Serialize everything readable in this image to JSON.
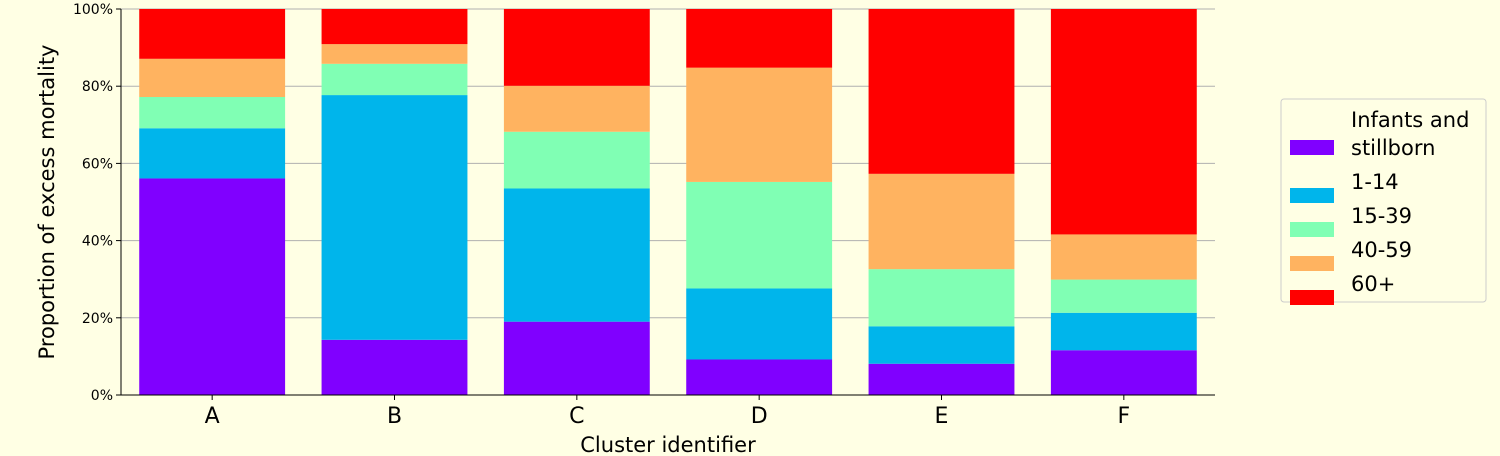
{
  "chart_data": {
    "type": "bar",
    "stacked": true,
    "title": "",
    "xlabel": "Cluster identifier",
    "ylabel": "Proportion of excess mortality",
    "ylim": [
      0,
      100
    ],
    "yticks": [
      "0%",
      "20%",
      "40%",
      "60%",
      "80%",
      "100%"
    ],
    "grid": true,
    "legend_position": "right",
    "categories": [
      "A",
      "B",
      "C",
      "D",
      "E",
      "F"
    ],
    "series": [
      {
        "name": "Infants and stillborn",
        "legend_lines": [
          "Infants and",
          "stillborn"
        ],
        "color": "#8000ff",
        "values": [
          56.1,
          14.3,
          19.0,
          9.2,
          8.1,
          11.6
        ]
      },
      {
        "name": "1-14",
        "legend_lines": [
          "1-14"
        ],
        "color": "#00b5eb",
        "values": [
          13.0,
          63.4,
          34.5,
          18.4,
          9.7,
          9.7
        ]
      },
      {
        "name": "15-39",
        "legend_lines": [
          "15-39"
        ],
        "color": "#80ffb4",
        "values": [
          8.1,
          8.1,
          14.7,
          27.6,
          14.8,
          8.6
        ]
      },
      {
        "name": "40-59",
        "legend_lines": [
          "40-59"
        ],
        "color": "#ffb360",
        "values": [
          9.9,
          5.1,
          11.9,
          29.6,
          24.7,
          11.7
        ]
      },
      {
        "name": "60+",
        "legend_lines": [
          "60+"
        ],
        "color": "#ff0000",
        "values": [
          12.9,
          9.1,
          19.9,
          15.2,
          42.7,
          58.4
        ]
      }
    ]
  }
}
